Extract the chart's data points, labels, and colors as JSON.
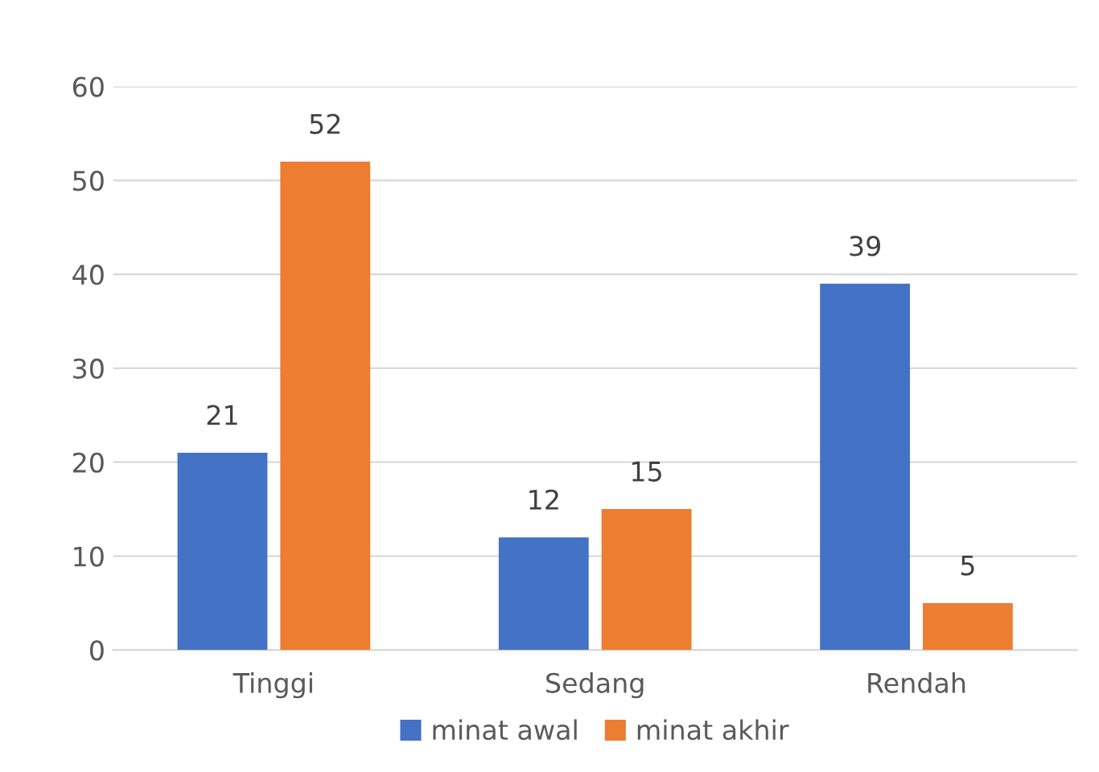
{
  "chart_data": {
    "type": "bar",
    "categories": [
      "Tinggi",
      "Sedang",
      "Rendah"
    ],
    "series": [
      {
        "name": "minat awal",
        "color": "#4472c4",
        "values": [
          21,
          12,
          39
        ]
      },
      {
        "name": "minat akhir",
        "color": "#ed7d31",
        "values": [
          52,
          15,
          5
        ]
      }
    ],
    "ylim": [
      0,
      60
    ],
    "yticks": [
      0,
      10,
      20,
      30,
      40,
      50,
      60
    ],
    "grid": "y",
    "legend": "bottom",
    "data_labels": true
  }
}
